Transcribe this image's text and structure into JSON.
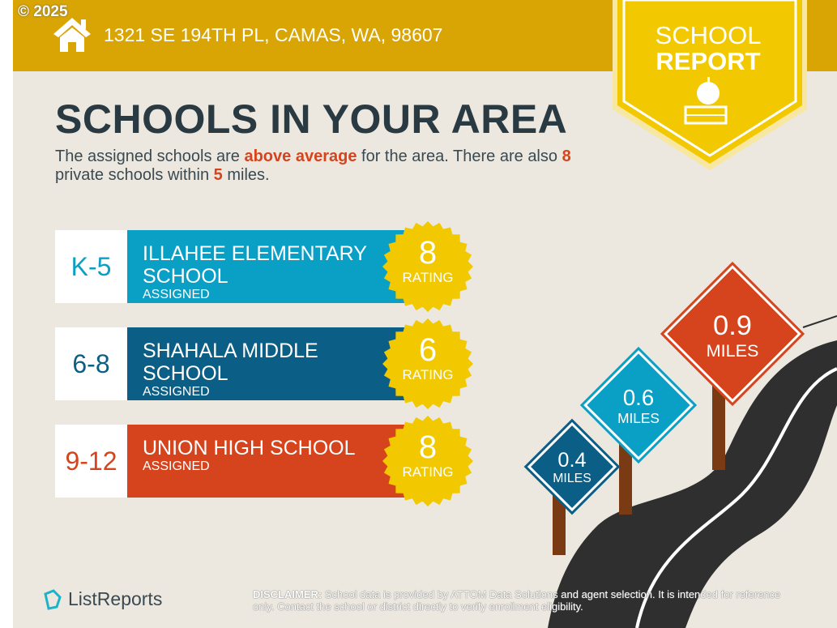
{
  "header": {
    "copyright": "© 2025",
    "address": "1321 SE 194TH PL, CAMAS, WA, 98607",
    "icon": "house-icon"
  },
  "badge": {
    "line1": "SCHOOL",
    "line2": "REPORT",
    "icon": "apple-on-book-icon"
  },
  "title": "SCHOOLS IN YOUR AREA",
  "subtitle": {
    "p1": "The assigned schools are ",
    "hl1": "above average",
    "p2": " for the area. There are also ",
    "hl2": "8",
    "p3": " private schools within ",
    "hl3": "5",
    "p4": " miles."
  },
  "schools": [
    {
      "grade": "K-5",
      "name": "ILLAHEE ELEMENTARY SCHOOL",
      "status": "ASSIGNED",
      "rating": "8",
      "rating_label": "RATING",
      "color": "#0AA0C6"
    },
    {
      "grade": "6-8",
      "name": "SHAHALA MIDDLE SCHOOL",
      "status": "ASSIGNED",
      "rating": "6",
      "rating_label": "RATING",
      "color": "#0B5E85"
    },
    {
      "grade": "9-12",
      "name": "UNION HIGH SCHOOL",
      "status": "ASSIGNED",
      "rating": "8",
      "rating_label": "RATING",
      "color": "#D5441C"
    }
  ],
  "signs": [
    {
      "distance": "0.4",
      "unit": "MILES",
      "color": "#0B5E85"
    },
    {
      "distance": "0.6",
      "unit": "MILES",
      "color": "#0AA0C6"
    },
    {
      "distance": "0.9",
      "unit": "MILES",
      "color": "#D5441C"
    }
  ],
  "footer": {
    "logo": "ListReports",
    "disclaimer_label": "DISCLAIMER:",
    "disclaimer": " School data is provided by ATTOM Data Solutions and agent selection. It is intended for reference only. Contact the school or district directly to verify enrollment eligibility."
  },
  "colors": {
    "header": "#D9A504",
    "badge": "#F2C800",
    "title": "#2A3A43",
    "background": "#ECE8DF"
  }
}
